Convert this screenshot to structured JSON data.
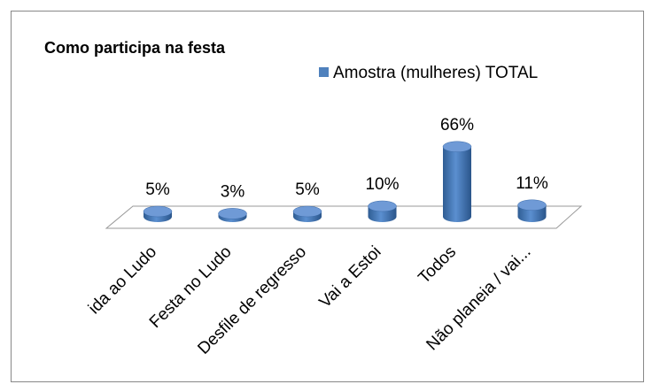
{
  "chart_data": {
    "type": "bar3d",
    "title": "Como participa na festa",
    "categories": [
      "ida ao Ludo",
      "Festa no Ludo",
      "Desfile de regresso",
      "Vai a Estoi",
      "Todos",
      "Não planeia / vai..."
    ],
    "series": [
      {
        "name": "Amostra (mulheres) TOTAL",
        "color": "#4f81bd",
        "values": [
          5,
          3,
          5,
          10,
          66,
          11
        ],
        "value_labels": [
          "5%",
          "3%",
          "5%",
          "10%",
          "66%",
          "11%"
        ]
      }
    ],
    "legend": "top-right"
  }
}
